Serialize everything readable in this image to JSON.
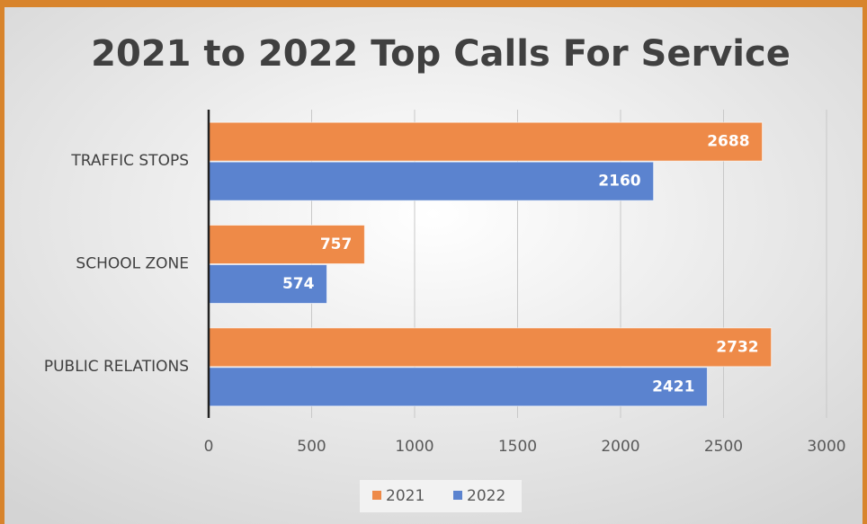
{
  "chart_data": {
    "type": "bar",
    "orientation": "horizontal",
    "title": "2021 to 2022 Top Calls For Service",
    "categories": [
      "TRAFFIC STOPS",
      "SCHOOL ZONE",
      "PUBLIC RELATIONS"
    ],
    "series": [
      {
        "name": "2021",
        "color": "#ee8a48",
        "values": [
          2688,
          757,
          2732
        ]
      },
      {
        "name": "2022",
        "color": "#5b83cf",
        "values": [
          2160,
          574,
          2421
        ]
      }
    ],
    "xlim": [
      0,
      3000
    ],
    "xticks": [
      0,
      500,
      1000,
      1500,
      2000,
      2500,
      3000
    ],
    "grid": true,
    "legend": "bottom"
  }
}
